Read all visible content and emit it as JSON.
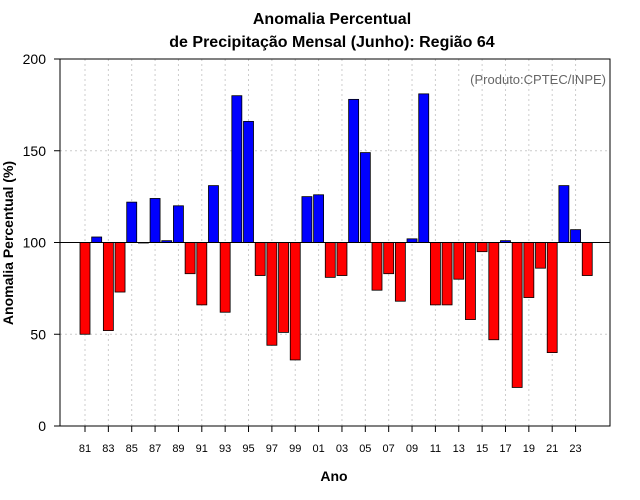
{
  "chart_data": {
    "type": "bar",
    "title_line1": "Anomalia Percentual",
    "title_line2": "de Precipitação Mensal (Junho): Região 64",
    "credit": "(Produto:CPTEC/INPE)",
    "xlabel": "Ano",
    "ylabel": "Anomalia Percentual (%)",
    "ylim": [
      0,
      200
    ],
    "yticks": [
      0,
      50,
      100,
      150,
      200
    ],
    "baseline": 100,
    "x_tick_labels": [
      "81",
      "83",
      "85",
      "87",
      "89",
      "91",
      "93",
      "95",
      "97",
      "99",
      "01",
      "03",
      "05",
      "07",
      "09",
      "11",
      "13",
      "15",
      "17",
      "19",
      "21",
      "23"
    ],
    "categories": [
      "1981",
      "1982",
      "1983",
      "1984",
      "1985",
      "1986",
      "1987",
      "1988",
      "1989",
      "1990",
      "1991",
      "1992",
      "1993",
      "1994",
      "1995",
      "1996",
      "1997",
      "1998",
      "1999",
      "2000",
      "2001",
      "2002",
      "2003",
      "2004",
      "2005",
      "2006",
      "2007",
      "2008",
      "2009",
      "2010",
      "2011",
      "2012",
      "2013",
      "2014",
      "2015",
      "2016",
      "2017",
      "2018",
      "2019",
      "2020",
      "2021",
      "2022",
      "2023",
      "2024"
    ],
    "values": [
      50,
      103,
      52,
      73,
      122,
      100,
      124,
      101,
      120,
      83,
      66,
      131,
      62,
      180,
      166,
      82,
      44,
      51,
      36,
      125,
      126,
      81,
      82,
      178,
      149,
      74,
      83,
      68,
      102,
      181,
      66,
      66,
      80,
      58,
      95,
      47,
      101,
      21,
      70,
      86,
      40,
      131,
      107,
      82
    ],
    "colors": {
      "above": "#0000ff",
      "below": "#ff0000"
    },
    "grid": true
  }
}
